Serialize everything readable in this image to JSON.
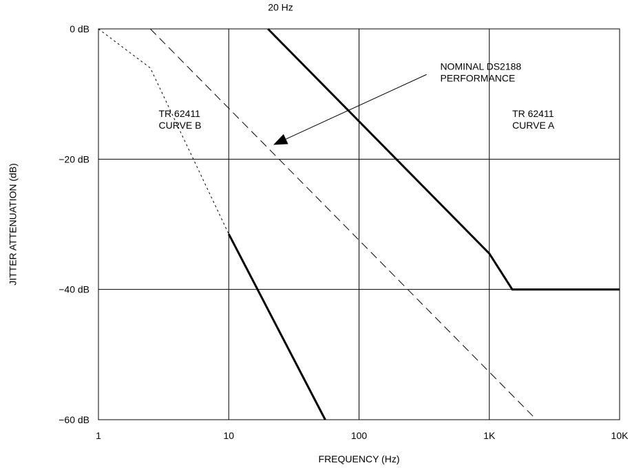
{
  "chart_data": {
    "type": "line",
    "title": "",
    "xlabel": "FREQUENCY (Hz)",
    "ylabel": "JITTER ATTENUATION (dB)",
    "x_scale": "log",
    "xlim": [
      1,
      10000
    ],
    "ylim": [
      -60,
      0
    ],
    "grid": true,
    "x_ticks": [
      {
        "value": 1,
        "label": "1"
      },
      {
        "value": 10,
        "label": "10"
      },
      {
        "value": 100,
        "label": "100"
      },
      {
        "value": 1000,
        "label": "1K"
      },
      {
        "value": 10000,
        "label": "10K"
      }
    ],
    "y_ticks": [
      {
        "value": 0,
        "label": "0 dB"
      },
      {
        "value": -20,
        "label": "−20 dB"
      },
      {
        "value": -40,
        "label": "−40 dB"
      },
      {
        "value": -60,
        "label": "−60 dB"
      }
    ],
    "series": [
      {
        "key": "curve-a",
        "style": "solid-thick",
        "color": "#000000",
        "points": [
          [
            20,
            0
          ],
          [
            1000,
            -34.5
          ],
          [
            1500,
            -40
          ],
          [
            10000,
            -40
          ]
        ]
      },
      {
        "key": "curve-b",
        "style": "solid-thick",
        "color": "#000000",
        "points": [
          [
            10,
            -31.5
          ],
          [
            55,
            -60
          ]
        ]
      },
      {
        "key": "curve-b-extension",
        "style": "dotted",
        "color": "#000000",
        "points": [
          [
            1,
            0
          ],
          [
            2.5,
            -6
          ],
          [
            10,
            -31.5
          ]
        ]
      },
      {
        "key": "nominal-ds2188",
        "style": "dashed",
        "color": "#000000",
        "points": [
          [
            2.5,
            0
          ],
          [
            2300,
            -60
          ]
        ]
      }
    ],
    "annotations": [
      {
        "key": "20hz",
        "text": [
          "20 Hz"
        ],
        "x": 20,
        "y": 2.8
      },
      {
        "key": "nominal",
        "text": [
          "NOMINAL DS2188",
          "PERFORMANCE"
        ],
        "x": 420,
        "y": -6.3
      },
      {
        "key": "curve-b-label",
        "text": [
          "TR 62411",
          "CURVE B"
        ],
        "x": 2.9,
        "y": -13.5,
        "anchor": "start"
      },
      {
        "key": "curve-a-label",
        "text": [
          "TR 62411",
          "CURVE A"
        ],
        "x": 1500,
        "y": -13.5,
        "anchor": "start"
      }
    ],
    "arrow": {
      "from": [
        330,
        -7
      ],
      "to": [
        22,
        -17.8
      ]
    }
  }
}
